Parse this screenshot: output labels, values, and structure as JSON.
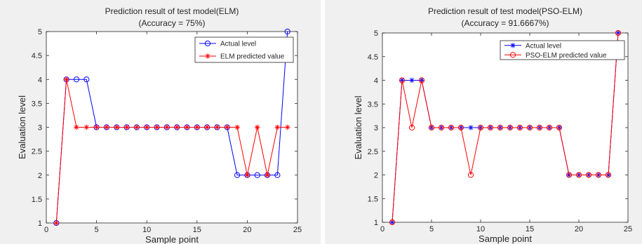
{
  "chart_data": [
    {
      "type": "line",
      "title_line1": "Prediction result of test model(ELM)",
      "title_line2": "(Accuracy = 75%)",
      "xlabel": "Sample point",
      "ylabel": "Evaluation level",
      "xlim": [
        0,
        25
      ],
      "ylim": [
        1,
        5
      ],
      "xticks": [
        0,
        5,
        10,
        15,
        20,
        25
      ],
      "xtick_labels": [
        "0",
        "5",
        "10",
        "15",
        "20",
        "25"
      ],
      "yticks": [
        1,
        1.5,
        2,
        2.5,
        3,
        3.5,
        4,
        4.5,
        5
      ],
      "ytick_labels": [
        "1",
        "1.5",
        "2",
        "2.5",
        "3",
        "3.5",
        "4",
        "4.5",
        "5"
      ],
      "grid": false,
      "legend_position": "top-right",
      "x": [
        1,
        2,
        3,
        4,
        5,
        6,
        7,
        8,
        9,
        10,
        11,
        12,
        13,
        14,
        15,
        16,
        17,
        18,
        19,
        20,
        21,
        22,
        23,
        24
      ],
      "series": [
        {
          "name": "Actual level",
          "color": "#0000ff",
          "marker": "circle",
          "values": [
            1,
            4,
            4,
            4,
            3,
            3,
            3,
            3,
            3,
            3,
            3,
            3,
            3,
            3,
            3,
            3,
            3,
            3,
            2,
            2,
            2,
            2,
            2,
            5
          ]
        },
        {
          "name": "ELM predicted value",
          "color": "#ff0000",
          "marker": "asterisk",
          "values": [
            1,
            4,
            3,
            3,
            3,
            3,
            3,
            3,
            3,
            3,
            3,
            3,
            3,
            3,
            3,
            3,
            3,
            3,
            3,
            2,
            3,
            2,
            3,
            3
          ]
        }
      ]
    },
    {
      "type": "line",
      "title_line1": "Prediction result of test model(PSO-ELM)",
      "title_line2": "(Accuracy = 91.6667%)",
      "xlabel": "Sample point",
      "ylabel": "Evaluation level",
      "xlim": [
        0,
        25
      ],
      "ylim": [
        1,
        5
      ],
      "xticks": [
        0,
        5,
        10,
        15,
        20,
        25
      ],
      "xtick_labels": [
        "0",
        "5",
        "10",
        "15",
        "20",
        "25"
      ],
      "yticks": [
        1,
        1.5,
        2,
        2.5,
        3,
        3.5,
        4,
        4.5,
        5
      ],
      "ytick_labels": [
        "1",
        "1.5",
        "2",
        "2.5",
        "3",
        "3.5",
        "4",
        "4.5",
        "5"
      ],
      "grid": false,
      "legend_position": "top-right",
      "x": [
        1,
        2,
        3,
        4,
        5,
        6,
        7,
        8,
        9,
        10,
        11,
        12,
        13,
        14,
        15,
        16,
        17,
        18,
        19,
        20,
        21,
        22,
        23,
        24
      ],
      "series": [
        {
          "name": "Actual level",
          "color": "#0000ff",
          "marker": "asterisk",
          "values": [
            1,
            4,
            4,
            4,
            3,
            3,
            3,
            3,
            3,
            3,
            3,
            3,
            3,
            3,
            3,
            3,
            3,
            3,
            2,
            2,
            2,
            2,
            2,
            5
          ]
        },
        {
          "name": "PSO-ELM predicted value",
          "color": "#ff0000",
          "marker": "circle",
          "values": [
            1,
            4,
            3,
            4,
            3,
            3,
            3,
            3,
            2,
            3,
            3,
            3,
            3,
            3,
            3,
            3,
            3,
            3,
            2,
            2,
            2,
            2,
            2,
            5
          ]
        }
      ]
    }
  ]
}
